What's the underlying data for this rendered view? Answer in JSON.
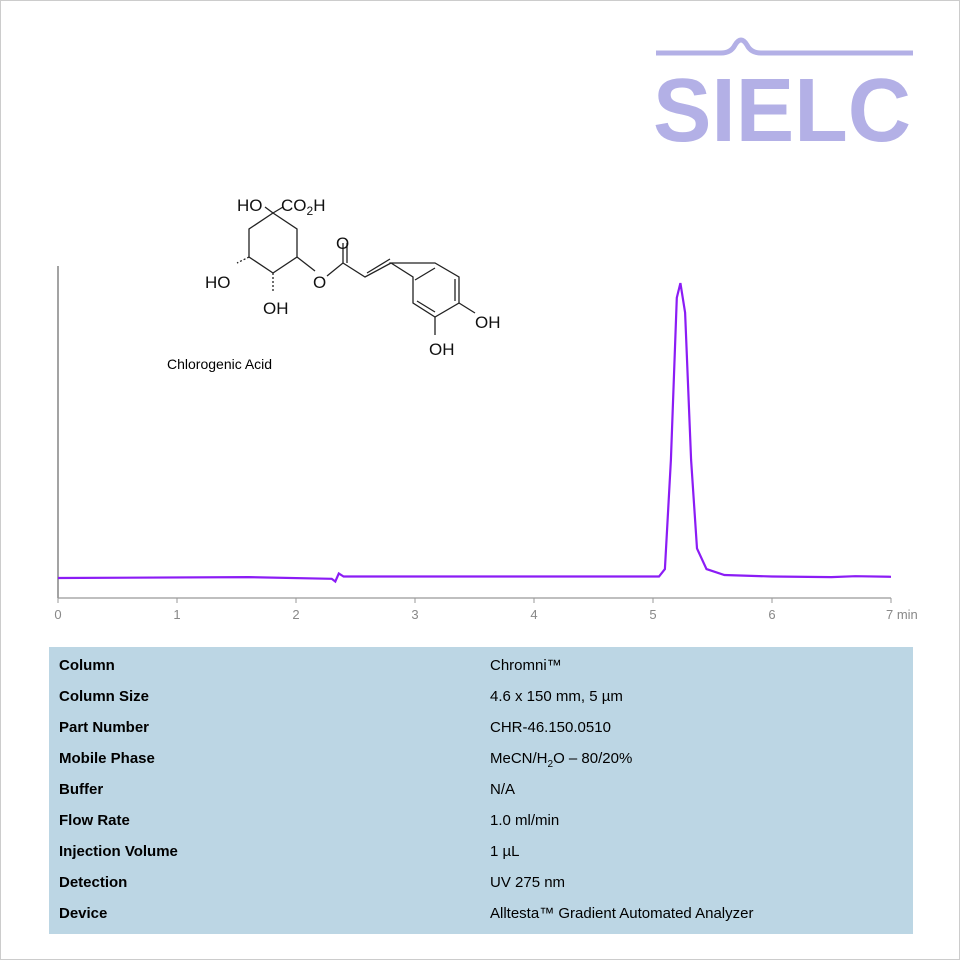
{
  "logo": {
    "text": "SIELC",
    "color": "#b3b0e6"
  },
  "compound": {
    "name": "Chlorogenic Acid",
    "labels": [
      "HO",
      "CO2H",
      "O",
      "HO",
      "OH",
      "O",
      "OH",
      "OH"
    ]
  },
  "chart_data": {
    "type": "line",
    "xlabel": "min",
    "xlim": [
      0,
      7
    ],
    "ylim": [
      -0.068,
      1.058
    ],
    "xticks": [
      "0",
      "1",
      "2",
      "3",
      "4",
      "5",
      "6",
      "7"
    ],
    "grid": false,
    "color": "#8b1cf5",
    "series": [
      {
        "x": [
          0,
          1.6,
          2.3,
          2.33,
          2.36,
          2.4,
          5.05,
          5.1,
          5.15,
          5.2,
          5.23,
          5.27,
          5.32,
          5.37,
          5.45,
          5.6,
          6,
          6.5,
          6.7,
          7
        ],
        "y": [
          0,
          0.003,
          -0.003,
          -0.012,
          0.015,
          0.005,
          0.005,
          0.03,
          0.4,
          0.95,
          1.0,
          0.9,
          0.4,
          0.1,
          0.03,
          0.01,
          0.005,
          0.003,
          0.006,
          0.004
        ]
      }
    ]
  },
  "table": [
    {
      "k": "Column",
      "v": "Chromni™"
    },
    {
      "k": "Column Size",
      "v": "4.6 x 150 mm, 5 µm"
    },
    {
      "k": "Part Number",
      "v": "CHR-46.150.0510"
    },
    {
      "k": "Mobile Phase",
      "v": "MeCN/H",
      "sub": "2",
      "v2": "O –  80/20%"
    },
    {
      "k": "Buffer",
      "v": "N/A"
    },
    {
      "k": "Flow Rate",
      "v": "1.0 ml/min"
    },
    {
      "k": "Injection Volume",
      "v": "1 µL"
    },
    {
      "k": "Detection",
      "v": "UV 275 nm"
    },
    {
      "k": "Device",
      "v": "Alltesta™ Gradient Automated Analyzer"
    }
  ]
}
